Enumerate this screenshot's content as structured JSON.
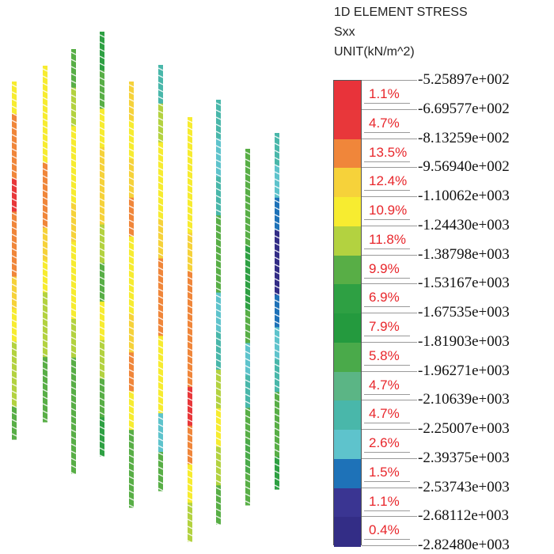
{
  "legend": {
    "title": "1D ELEMENT STRESS",
    "component": "Sxx",
    "unit": "UNIT(kN/m^2)",
    "bounds": [
      "-5.25897e+002",
      "-6.69577e+002",
      "-8.13259e+002",
      "-9.56940e+002",
      "-1.10062e+003",
      "-1.24430e+003",
      "-1.38798e+003",
      "-1.53167e+003",
      "-1.67535e+003",
      "-1.81903e+003",
      "-1.96271e+003",
      "-2.10639e+003",
      "-2.25007e+003",
      "-2.39375e+003",
      "-2.53743e+003",
      "-2.68112e+003",
      "-2.82480e+003"
    ],
    "bands": [
      {
        "percent": "1.1%",
        "color": "#e8333a"
      },
      {
        "percent": "4.7%",
        "color": "#e8373a"
      },
      {
        "percent": "13.5%",
        "color": "#f0863a"
      },
      {
        "percent": "12.4%",
        "color": "#f6d23a"
      },
      {
        "percent": "10.9%",
        "color": "#f7ec30"
      },
      {
        "percent": "11.8%",
        "color": "#b3d240"
      },
      {
        "percent": "9.9%",
        "color": "#58ae46"
      },
      {
        "percent": "6.9%",
        "color": "#2ea043"
      },
      {
        "percent": "7.9%",
        "color": "#249a3e"
      },
      {
        "percent": "5.8%",
        "color": "#4aaa4a"
      },
      {
        "percent": "4.7%",
        "color": "#5bb585"
      },
      {
        "percent": "4.7%",
        "color": "#49b7aa"
      },
      {
        "percent": "2.6%",
        "color": "#5ec3cc"
      },
      {
        "percent": "1.5%",
        "color": "#1e72b8"
      },
      {
        "percent": "1.1%",
        "color": "#3a3592"
      },
      {
        "percent": "0.4%",
        "color": "#332d86"
      }
    ]
  }
}
